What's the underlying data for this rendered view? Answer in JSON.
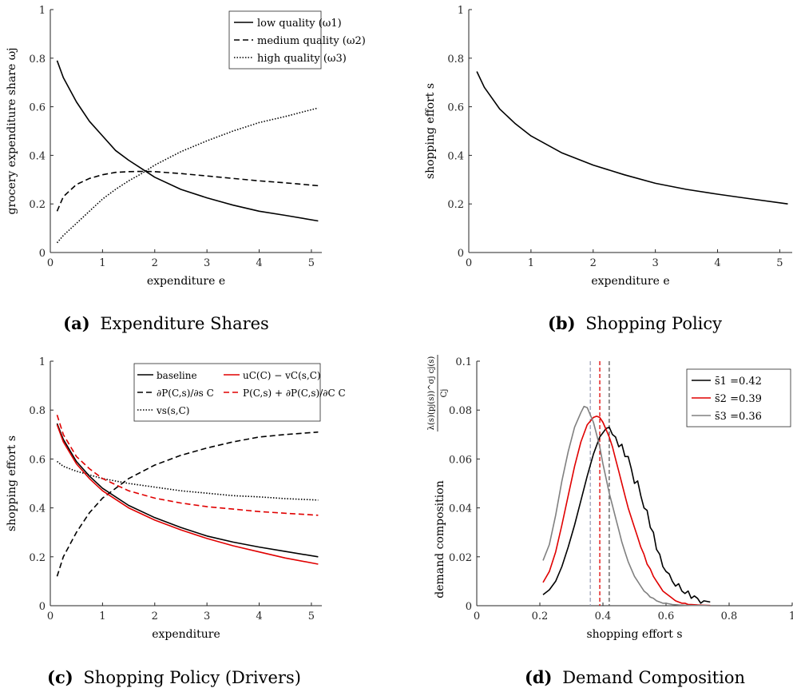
{
  "figure": {
    "panels": [
      {
        "tag": "(a)",
        "caption": "Expenditure Shares"
      },
      {
        "tag": "(b)",
        "caption": "Shopping Policy"
      },
      {
        "tag": "(c)",
        "caption": "Shopping Policy (Drivers)"
      },
      {
        "tag": "(d)",
        "caption": "Demand Composition"
      }
    ]
  },
  "chart_data": [
    {
      "id": "a",
      "type": "line",
      "title": "",
      "xlabel": "expenditure e",
      "ylabel": "grocery expenditure share ωj",
      "xlim": [
        0,
        5.2
      ],
      "ylim": [
        0,
        1
      ],
      "xticks": [
        0,
        1,
        2,
        3,
        4,
        5
      ],
      "yticks": [
        0,
        0.2,
        0.4,
        0.6,
        0.8,
        1
      ],
      "ytick_labels": [
        "0",
        "0.2",
        "0.4",
        "0.6",
        "0.8",
        "1"
      ],
      "grid": false,
      "legend": "top-right",
      "x": [
        0.13,
        0.25,
        0.5,
        0.75,
        1.0,
        1.25,
        1.5,
        1.75,
        2.0,
        2.5,
        3.0,
        3.5,
        4.0,
        4.5,
        5.13
      ],
      "series": [
        {
          "name": "low quality (ω1)",
          "color": "#000000",
          "dash": "solid",
          "values": [
            0.79,
            0.72,
            0.62,
            0.54,
            0.48,
            0.42,
            0.38,
            0.345,
            0.31,
            0.26,
            0.225,
            0.195,
            0.17,
            0.153,
            0.13
          ]
        },
        {
          "name": "medium quality (ω2)",
          "color": "#000000",
          "dash": "dashed",
          "values": [
            0.17,
            0.23,
            0.28,
            0.305,
            0.32,
            0.33,
            0.333,
            0.334,
            0.333,
            0.325,
            0.315,
            0.305,
            0.295,
            0.287,
            0.275
          ]
        },
        {
          "name": "high quality (ω3)",
          "color": "#000000",
          "dash": "dotted",
          "values": [
            0.04,
            0.07,
            0.12,
            0.17,
            0.22,
            0.26,
            0.295,
            0.325,
            0.36,
            0.415,
            0.46,
            0.5,
            0.535,
            0.56,
            0.595
          ]
        }
      ]
    },
    {
      "id": "b",
      "type": "line",
      "title": "",
      "xlabel": "expenditure e",
      "ylabel": "shopping effort s",
      "xlim": [
        0,
        5.2
      ],
      "ylim": [
        0,
        1
      ],
      "xticks": [
        0,
        1,
        2,
        3,
        4,
        5
      ],
      "yticks": [
        0,
        0.2,
        0.4,
        0.6,
        0.8,
        1
      ],
      "ytick_labels": [
        "0",
        "0.2",
        "0.4",
        "0.6",
        "0.8",
        "1"
      ],
      "grid": false,
      "x": [
        0.13,
        0.25,
        0.5,
        0.75,
        1.0,
        1.5,
        2.0,
        2.5,
        3.0,
        3.5,
        4.0,
        4.5,
        5.13
      ],
      "series": [
        {
          "color": "#000000",
          "dash": "solid",
          "values": [
            0.745,
            0.68,
            0.59,
            0.53,
            0.48,
            0.41,
            0.36,
            0.32,
            0.285,
            0.26,
            0.24,
            0.222,
            0.2
          ]
        }
      ]
    },
    {
      "id": "c",
      "type": "line",
      "title": "",
      "xlabel": "expenditure",
      "ylabel": "shopping effort s",
      "xlim": [
        0,
        5.2
      ],
      "ylim": [
        0,
        1
      ],
      "xticks": [
        0,
        1,
        2,
        3,
        4,
        5
      ],
      "yticks": [
        0,
        0.2,
        0.4,
        0.6,
        0.8,
        1
      ],
      "ytick_labels": [
        "0",
        "0.2",
        "0.4",
        "0.6",
        "0.8",
        "1"
      ],
      "grid": false,
      "legend": "top-right",
      "x": [
        0.13,
        0.25,
        0.5,
        0.75,
        1.0,
        1.5,
        2.0,
        2.5,
        3.0,
        3.5,
        4.0,
        4.5,
        5.13
      ],
      "series": [
        {
          "name": "baseline",
          "color": "#000000",
          "dash": "solid",
          "values": [
            0.745,
            0.68,
            0.59,
            0.53,
            0.48,
            0.41,
            0.36,
            0.32,
            0.285,
            0.26,
            0.24,
            0.222,
            0.2
          ]
        },
        {
          "name": "∂P(C,s)/∂s C",
          "color": "#000000",
          "dash": "dashed",
          "values": [
            0.12,
            0.2,
            0.3,
            0.38,
            0.44,
            0.52,
            0.575,
            0.615,
            0.645,
            0.67,
            0.69,
            0.7,
            0.71
          ]
        },
        {
          "name": "vs(s,C)",
          "color": "#000000",
          "dash": "dotted",
          "values": [
            0.59,
            0.57,
            0.55,
            0.535,
            0.52,
            0.5,
            0.485,
            0.47,
            0.46,
            0.45,
            0.445,
            0.438,
            0.432
          ]
        },
        {
          "name": "uC(C) − vC(s,C)",
          "color": "#e00000",
          "dash": "solid",
          "values": [
            0.74,
            0.67,
            0.58,
            0.52,
            0.47,
            0.4,
            0.35,
            0.31,
            0.275,
            0.245,
            0.22,
            0.195,
            0.17
          ]
        },
        {
          "name": "P(C,s) + ∂P(C,s)/∂C C",
          "color": "#e00000",
          "dash": "dashed",
          "values": [
            0.78,
            0.7,
            0.61,
            0.56,
            0.52,
            0.47,
            0.44,
            0.42,
            0.405,
            0.395,
            0.385,
            0.378,
            0.37
          ]
        }
      ]
    },
    {
      "id": "d",
      "type": "line",
      "title": "",
      "xlabel": "shopping effort s",
      "ylabel": "demand composition",
      "ylabel_expr_num": "λ(s)(pj(s))^σj cj(s)",
      "ylabel_expr_den": "Cj",
      "xlim": [
        0,
        1
      ],
      "ylim": [
        0,
        0.1
      ],
      "xticks": [
        0,
        0.2,
        0.4,
        0.6,
        0.8,
        1
      ],
      "xtick_labels": [
        "0",
        "0.2",
        "0.4",
        "0.6",
        "0.8",
        "1"
      ],
      "yticks": [
        0,
        0.02,
        0.04,
        0.06,
        0.08,
        0.1
      ],
      "ytick_labels": [
        "0",
        "0.02",
        "0.04",
        "0.06",
        "0.08",
        "0.1"
      ],
      "grid": false,
      "legend": "top-right",
      "series": [
        {
          "name": "s̄1 =0.42",
          "color": "#000000",
          "mean": 0.42,
          "x": [
            0.21,
            0.23,
            0.25,
            0.27,
            0.29,
            0.31,
            0.33,
            0.35,
            0.37,
            0.39,
            0.41,
            0.42,
            0.43,
            0.44,
            0.45,
            0.46,
            0.47,
            0.48,
            0.49,
            0.5,
            0.51,
            0.52,
            0.53,
            0.54,
            0.55,
            0.56,
            0.57,
            0.58,
            0.59,
            0.6,
            0.61,
            0.62,
            0.63,
            0.64,
            0.65,
            0.66,
            0.67,
            0.68,
            0.69,
            0.7,
            0.71,
            0.72,
            0.74
          ],
          "values": [
            0.0045,
            0.0065,
            0.01,
            0.016,
            0.024,
            0.033,
            0.043,
            0.053,
            0.062,
            0.069,
            0.0725,
            0.073,
            0.07,
            0.069,
            0.065,
            0.066,
            0.061,
            0.061,
            0.056,
            0.05,
            0.051,
            0.045,
            0.04,
            0.039,
            0.032,
            0.03,
            0.023,
            0.021,
            0.016,
            0.014,
            0.013,
            0.01,
            0.008,
            0.009,
            0.006,
            0.005,
            0.006,
            0.003,
            0.004,
            0.003,
            0.001,
            0.002,
            0.0015
          ]
        },
        {
          "name": "s̄2 =0.39",
          "color": "#e00000",
          "mean": 0.39,
          "x": [
            0.21,
            0.23,
            0.25,
            0.27,
            0.29,
            0.31,
            0.33,
            0.35,
            0.37,
            0.38,
            0.39,
            0.4,
            0.41,
            0.42,
            0.43,
            0.44,
            0.45,
            0.46,
            0.47,
            0.48,
            0.49,
            0.5,
            0.51,
            0.52,
            0.53,
            0.54,
            0.55,
            0.56,
            0.57,
            0.58,
            0.59,
            0.6,
            0.61,
            0.62,
            0.63,
            0.64,
            0.65,
            0.66,
            0.67,
            0.68,
            0.7,
            0.72,
            0.74
          ],
          "values": [
            0.0095,
            0.014,
            0.022,
            0.033,
            0.045,
            0.057,
            0.067,
            0.074,
            0.077,
            0.0775,
            0.077,
            0.075,
            0.072,
            0.069,
            0.065,
            0.06,
            0.055,
            0.05,
            0.045,
            0.04,
            0.036,
            0.032,
            0.028,
            0.024,
            0.021,
            0.017,
            0.015,
            0.012,
            0.01,
            0.008,
            0.006,
            0.005,
            0.004,
            0.003,
            0.002,
            0.0015,
            0.001,
            0.001,
            0.0005,
            0.0005,
            0.0003,
            0.0002,
            0.0001
          ]
        },
        {
          "name": "s̄3 =0.36",
          "color": "#808080",
          "mean": 0.36,
          "x": [
            0.21,
            0.23,
            0.25,
            0.27,
            0.29,
            0.31,
            0.33,
            0.34,
            0.35,
            0.36,
            0.37,
            0.38,
            0.39,
            0.4,
            0.41,
            0.42,
            0.43,
            0.44,
            0.45,
            0.46,
            0.47,
            0.48,
            0.49,
            0.5,
            0.51,
            0.52,
            0.53,
            0.54,
            0.55,
            0.56,
            0.57,
            0.58,
            0.59,
            0.6,
            0.62,
            0.64,
            0.66,
            0.68,
            0.7,
            0.72,
            0.74
          ],
          "values": [
            0.0185,
            0.025,
            0.037,
            0.051,
            0.063,
            0.073,
            0.079,
            0.0815,
            0.081,
            0.078,
            0.075,
            0.07,
            0.065,
            0.058,
            0.052,
            0.046,
            0.041,
            0.036,
            0.031,
            0.026,
            0.022,
            0.018,
            0.015,
            0.012,
            0.01,
            0.008,
            0.006,
            0.005,
            0.0035,
            0.003,
            0.002,
            0.0015,
            0.001,
            0.001,
            0.0005,
            0.0003,
            0.0002,
            0.0001,
            0.0001,
            0.0001,
            0
          ]
        }
      ]
    }
  ]
}
